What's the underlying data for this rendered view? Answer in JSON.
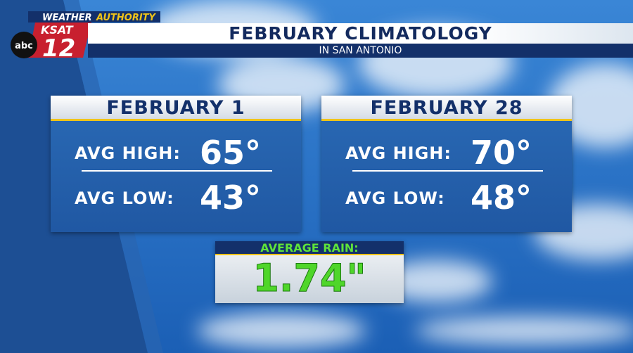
{
  "logo": {
    "brand": "WEATHER",
    "brand_accent": "AUTHORITY",
    "station": "KSAT",
    "channel": "12",
    "network": "abc"
  },
  "header": {
    "title": "FEBRUARY CLIMATOLOGY",
    "subtitle": "IN SAN ANTONIO"
  },
  "cards": [
    {
      "date": "FEBRUARY 1",
      "rows": [
        {
          "label": "AVG HIGH:",
          "value": "65°"
        },
        {
          "label": "AVG LOW:",
          "value": "43°"
        }
      ]
    },
    {
      "date": "FEBRUARY 28",
      "rows": [
        {
          "label": "AVG HIGH:",
          "value": "70°"
        },
        {
          "label": "AVG LOW:",
          "value": "48°"
        }
      ]
    }
  ],
  "rain": {
    "label": "AVERAGE RAIN:",
    "value": "1.74\""
  }
}
